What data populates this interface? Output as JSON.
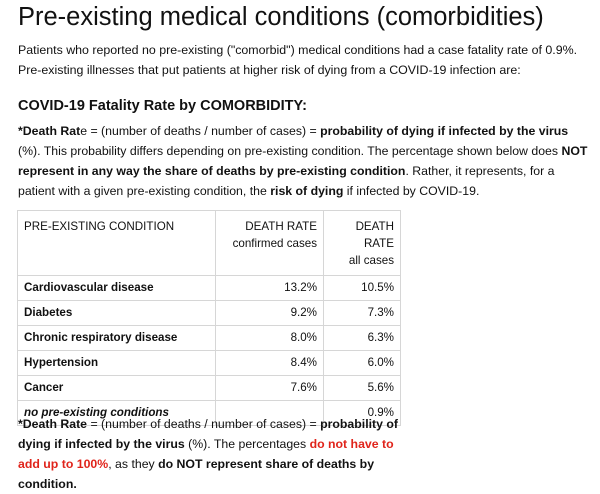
{
  "heading": "Pre-existing medical conditions (comorbidities)",
  "intro": {
    "line1": "Patients who reported no pre-existing (\"comorbid\") medical conditions had a case fatality rate of 0.9%.",
    "line2": "Pre-existing illnesses that put patients at higher risk of dying from a COVID-19 infection are:"
  },
  "subheading": "COVID-19 Fatality Rate by COMORBIDITY:",
  "definition": {
    "p1_bold1": "*Death Rat",
    "p1_plain1": "e = (number of deaths / number of cases) = ",
    "p1_bold2": "probability of dying if infected by the virus",
    "p1_plain2": " (%). This probability differs depending on pre-existing condition. The percentage shown below does ",
    "p1_bold3": "NOT represent in any way the share of deaths by pre-existing condition",
    "p1_plain3": ". Rather, it represents, for a patient with a given pre-existing condition, the ",
    "p1_bold4": "risk of dying",
    "p1_plain4": " if infected by COVID-19."
  },
  "table": {
    "headers": {
      "condition": "PRE-EXISTING CONDITION",
      "confirmed_top": "DEATH RATE",
      "confirmed_sub": "confirmed cases",
      "all_top": "DEATH RATE",
      "all_sub": "all cases"
    },
    "rows": [
      {
        "condition": "Cardiovascular disease",
        "confirmed": "13.2%",
        "all": "10.5%"
      },
      {
        "condition": "Diabetes",
        "confirmed": "9.2%",
        "all": "7.3%"
      },
      {
        "condition": "Chronic respiratory disease",
        "confirmed": "8.0%",
        "all": "6.3%"
      },
      {
        "condition": "Hypertension",
        "confirmed": "8.4%",
        "all": "6.0%"
      },
      {
        "condition": "Cancer",
        "confirmed": "7.6%",
        "all": "5.6%"
      },
      {
        "condition": "no pre-existing conditions",
        "confirmed": "",
        "all": "0.9%"
      }
    ]
  },
  "footnote": {
    "bold1": "*Death Rate",
    "plain1": " = (number of deaths / number of cases) = ",
    "bold2": "probability of dying if infected by the virus",
    "plain2": " (%). The percentages ",
    "red": "do not have to add up to 100%",
    "plain3": ", as they ",
    "bold3": "do NOT represent share of deaths by condition."
  },
  "colors": {
    "accent_red": "#e0241b",
    "border": "#d6d6d6"
  }
}
